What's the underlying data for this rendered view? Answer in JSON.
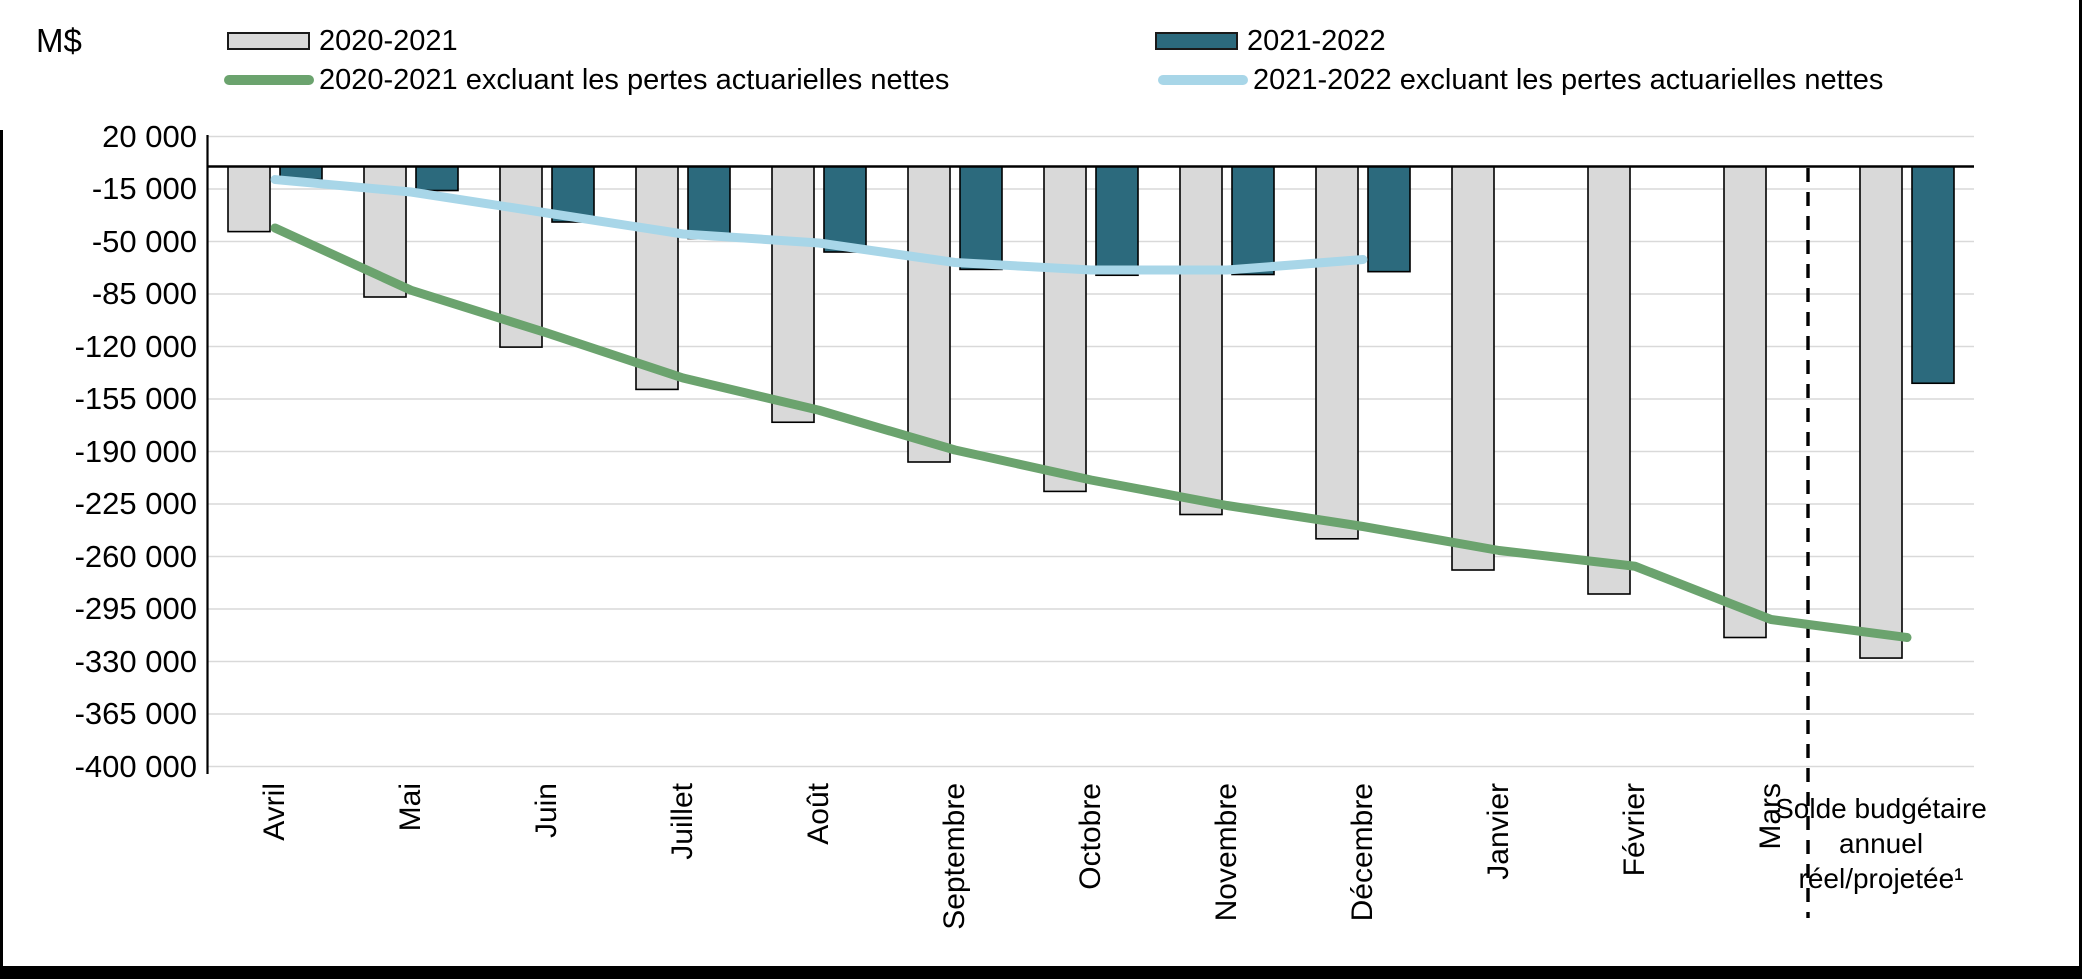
{
  "chart_data": {
    "type": "bar+line",
    "title": "",
    "y_axis_title": "M$",
    "unit": "millions de dollars",
    "grid": "horizontal",
    "legend_position": "top",
    "ylim": [
      -400000,
      20000
    ],
    "y_tick_step": 35000,
    "y_tick_values": [
      20000,
      -15000,
      -50000,
      -85000,
      -120000,
      -155000,
      -190000,
      -225000,
      -260000,
      -295000,
      -330000,
      -365000,
      -400000
    ],
    "y_tick_labels": [
      "20 000",
      "-15 000",
      "-50 000",
      "-85 000",
      "-120 000",
      "-155 000",
      "-190 000",
      "-225 000",
      "-260 000",
      "-295 000",
      "-330 000",
      "-365 000",
      "-400 000"
    ],
    "categories": [
      "Avril",
      "Mai",
      "Juin",
      "Juillet",
      "Août",
      "Septembre",
      "Octobre",
      "Novembre",
      "Décembre",
      "Janvier",
      "Février",
      "Mars",
      "Solde budgétaire annuel réel/projetée¹"
    ],
    "annotation": {
      "dashed_separator": "vertical dashed line between Mars and Solde budgétaire annuel réel/projetée¹"
    },
    "series": [
      {
        "name": "2020-2021",
        "type": "bar",
        "color": "#d9d9d9",
        "border_color": "#000000",
        "values": [
          -43400,
          -87000,
          -120400,
          -148600,
          -170500,
          -197000,
          -216600,
          -232000,
          -248200,
          -269000,
          -285000,
          -314000,
          -327700
        ]
      },
      {
        "name": "2021-2022",
        "type": "bar",
        "color": "#2c6a7d",
        "border_color": "#000000",
        "values": [
          -8700,
          -16000,
          -37000,
          -48000,
          -57000,
          -68600,
          -72500,
          -72000,
          -70100,
          null,
          null,
          null,
          -144500
        ]
      },
      {
        "name": "2020-2021 excluant les pertes actuarielles nettes",
        "type": "line",
        "color": "#6ba36e",
        "values": [
          -41000,
          -82500,
          -111000,
          -141000,
          -162500,
          -189000,
          -209000,
          -226000,
          -240000,
          -256000,
          -266500,
          -302000,
          -314000
        ]
      },
      {
        "name": "2021-2022 excluant les pertes actuarielles nettes",
        "type": "line",
        "color": "#a8d6e8",
        "values": [
          -8700,
          -17000,
          -31000,
          -45000,
          -51000,
          -64000,
          -69000,
          -69000,
          -62000,
          null,
          null,
          null,
          null
        ]
      }
    ],
    "colors": {
      "gridline": "#d9d9d9",
      "axis": "#000000",
      "zero_line": "#000000"
    }
  }
}
